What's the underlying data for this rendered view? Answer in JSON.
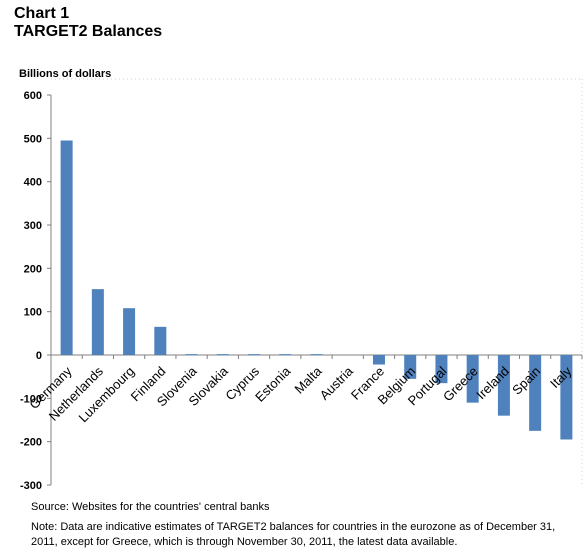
{
  "header": {
    "chart_number": "Chart 1",
    "title": "TARGET2 Balances"
  },
  "footer": {
    "source": "Source: Websites for the countries' central banks",
    "note": "Note: Data are indicative estimates of TARGET2 balances for countries in the eurozone as of December 31, 2011, except for Greece, which is through November 30, 2011, the latest data available."
  },
  "chart_data": {
    "type": "bar",
    "title": "TARGET2 Balances",
    "xlabel": "",
    "ylabel": "Billions of dollars",
    "ylim": [
      -300,
      600
    ],
    "yticks": [
      600,
      500,
      400,
      300,
      200,
      100,
      0,
      -100,
      -200,
      -300
    ],
    "categories": [
      "Germany",
      "Netherlands",
      "Luxembourg",
      "Finland",
      "Slovenia",
      "Slovakia",
      "Cyprus",
      "Estonia",
      "Malta",
      "Austria",
      "France",
      "Belgium",
      "Portugal",
      "Greece",
      "Ireland",
      "Spain",
      "Italy"
    ],
    "values": [
      495,
      152,
      108,
      65,
      2,
      2,
      2,
      2,
      2,
      0,
      -22,
      -55,
      -65,
      -110,
      -140,
      -175,
      -195
    ],
    "bar_color": "#4F81BD",
    "grid": false,
    "legend": "none"
  }
}
